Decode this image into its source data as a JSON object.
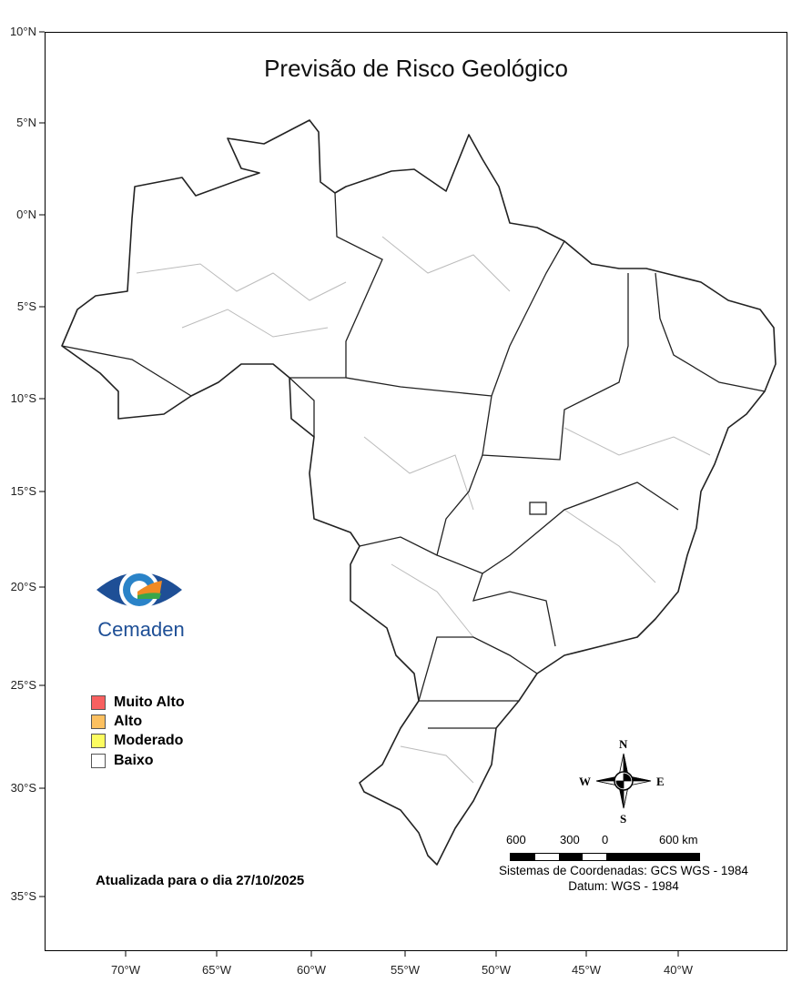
{
  "title": "Previsão de Risco Geológico",
  "lat_labels": [
    "10°N",
    "5°N",
    "0°N",
    "5°S",
    "10°S",
    "15°S",
    "20°S",
    "25°S",
    "30°S",
    "35°S"
  ],
  "lon_labels": [
    "70°W",
    "65°W",
    "60°W",
    "55°W",
    "50°W",
    "45°W",
    "40°W"
  ],
  "logo": {
    "text": "Cemaden"
  },
  "legend": [
    {
      "label": "Muito Alto",
      "color": "#f86060"
    },
    {
      "label": "Alto",
      "color": "#fcc060"
    },
    {
      "label": "Moderado",
      "color": "#fcfc60"
    },
    {
      "label": "Baixo",
      "color": "#ffffff"
    }
  ],
  "updated": "Atualizada para o dia 27/10/2025",
  "compass": {
    "n": "N",
    "s": "S",
    "e": "E",
    "w": "W"
  },
  "scale": {
    "labels": [
      "600",
      "300",
      "0",
      "600 km"
    ]
  },
  "crs": {
    "system": "Sistemas de Coordenadas: GCS WGS - 1984",
    "datum": "Datum: WGS - 1984"
  },
  "map_style": {
    "state_border": "#222222",
    "municipal_border": "#bbbbbb",
    "fill": "#ffffff"
  }
}
